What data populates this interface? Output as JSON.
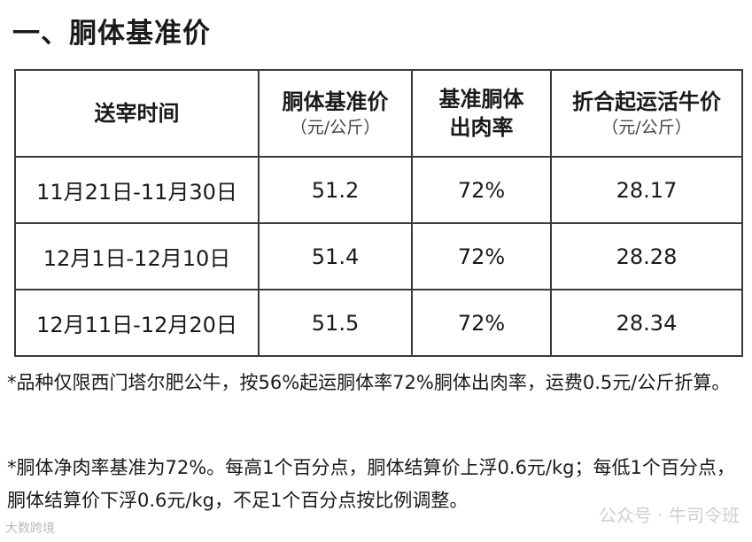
{
  "title": "一、胴体基准价",
  "table": {
    "headers": [
      {
        "line1": "送宰时间",
        "line2": "",
        "unit": ""
      },
      {
        "line1": "胴体基准价",
        "line2": "",
        "unit": "（元/公斤）"
      },
      {
        "line1": "基准胴体",
        "line2": "出肉率",
        "unit": ""
      },
      {
        "line1": "折合起运活牛价",
        "line2": "",
        "unit": "（元/公斤）"
      }
    ],
    "rows": [
      {
        "period": "11月21日-11月30日",
        "carcass_price": "51.2",
        "yield_rate": "72%",
        "live_price": "28.17"
      },
      {
        "period": "12月1日-12月10日",
        "carcass_price": "51.4",
        "yield_rate": "72%",
        "live_price": "28.28"
      },
      {
        "period": "12月11日-12月20日",
        "carcass_price": "51.5",
        "yield_rate": "72%",
        "live_price": "28.34"
      }
    ]
  },
  "notes": [
    "*品种仅限西门塔尔肥公牛，按56%起运胴体率72%胴体出肉率，运费0.5元/公斤折算。",
    "*胴体净肉率基准为72%。每高1个百分点，胴体结算价上浮0.6元/kg；每低1个百分点，胴体结算价下浮0.6元/kg，不足1个百分点按比例调整。"
  ],
  "watermarks": {
    "left": "大数跨境",
    "right": "公众号 · 牛司令班"
  }
}
